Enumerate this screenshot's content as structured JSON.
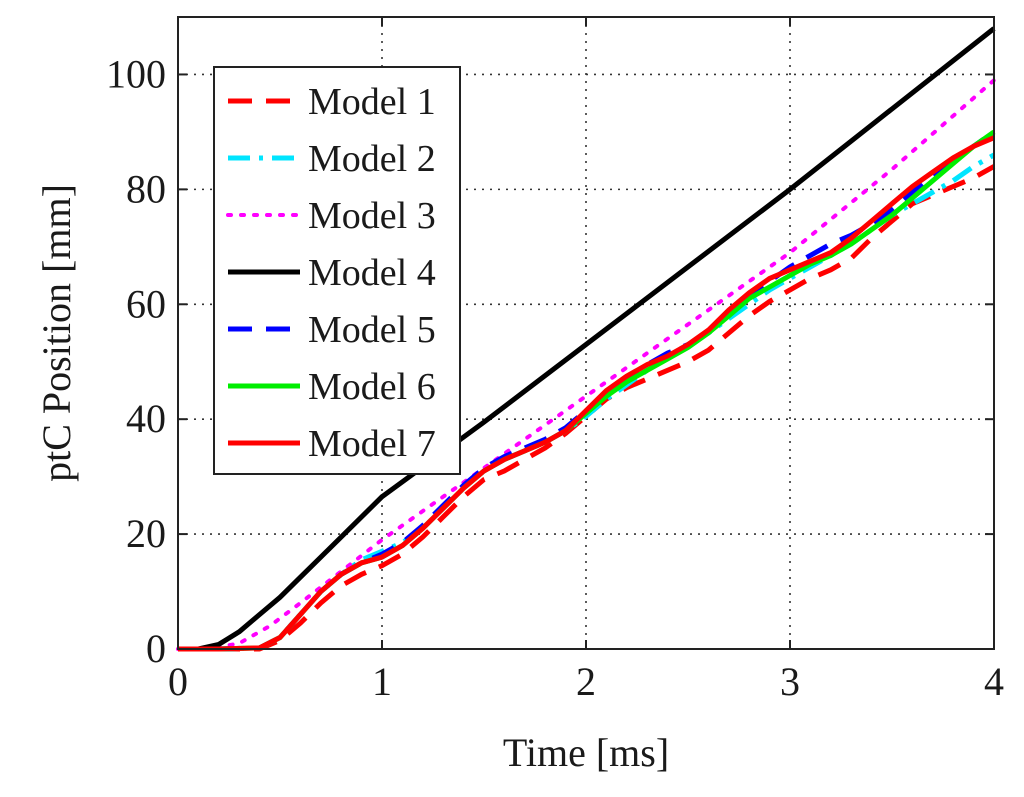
{
  "chart_data": {
    "type": "line",
    "title": "",
    "xlabel": "Time [ms]",
    "ylabel": "ptC Position [mm]",
    "xlim": [
      0,
      4
    ],
    "ylim": [
      0,
      110
    ],
    "xticks": [
      0,
      1,
      2,
      3,
      4
    ],
    "yticks": [
      0,
      20,
      40,
      60,
      80,
      100
    ],
    "grid": true,
    "legend_position": "top-left",
    "series": [
      {
        "name": "Model 1",
        "color": "#ff0000",
        "style": "dashed",
        "x": [
          0,
          0.2,
          0.4,
          0.5,
          0.6,
          0.7,
          0.8,
          0.9,
          1.0,
          1.1,
          1.2,
          1.3,
          1.4,
          1.5,
          1.6,
          1.7,
          1.8,
          1.9,
          2.0,
          2.1,
          2.2,
          2.3,
          2.4,
          2.5,
          2.6,
          2.7,
          2.8,
          2.9,
          3.0,
          3.1,
          3.2,
          3.3,
          3.4,
          3.5,
          3.6,
          3.7,
          3.8,
          3.9,
          4.0
        ],
        "y": [
          0,
          0,
          0,
          1.5,
          4.5,
          8,
          11,
          13,
          14.5,
          16.5,
          19.5,
          23,
          26.5,
          29.5,
          31,
          33,
          35,
          37.5,
          40.5,
          43.5,
          45.5,
          47,
          48.5,
          50,
          52,
          55,
          58,
          60.5,
          62.5,
          64.5,
          66,
          68,
          71.5,
          74.5,
          77.5,
          79,
          80.5,
          82,
          84
        ]
      },
      {
        "name": "Model 2",
        "color": "#00e5ff",
        "style": "dashdot",
        "x": [
          0,
          0.2,
          0.4,
          0.5,
          0.6,
          0.7,
          0.8,
          0.9,
          1.0,
          1.1,
          1.2,
          1.3,
          1.4,
          1.5,
          1.6,
          1.7,
          1.8,
          1.9,
          2.0,
          2.1,
          2.2,
          2.3,
          2.4,
          2.5,
          2.6,
          2.7,
          2.8,
          2.9,
          3.0,
          3.1,
          3.2,
          3.3,
          3.4,
          3.5,
          3.6,
          3.7,
          3.8,
          3.9,
          4.0
        ],
        "y": [
          0,
          0,
          0.2,
          2,
          6,
          10,
          13,
          15.5,
          17,
          18.5,
          21,
          24.5,
          28,
          31,
          33,
          34.5,
          36,
          38,
          40.5,
          43.5,
          46,
          48.5,
          51,
          53,
          55,
          57.5,
          60,
          62.5,
          64.5,
          66.5,
          68.5,
          70.5,
          73,
          75.5,
          77.5,
          79.5,
          81.5,
          84,
          86
        ]
      },
      {
        "name": "Model 3",
        "color": "#ff00ff",
        "style": "dotted",
        "x": [
          0,
          0.15,
          0.3,
          0.45,
          0.6,
          0.8,
          1.0,
          1.5,
          2.0,
          2.5,
          3.0,
          3.5,
          4.0
        ],
        "y": [
          0,
          0,
          1,
          4,
          8,
          13.5,
          19,
          31.5,
          44,
          56.5,
          69,
          83.5,
          99
        ]
      },
      {
        "name": "Model 4",
        "color": "#000000",
        "style": "solid",
        "x": [
          0,
          0.1,
          0.2,
          0.3,
          0.4,
          0.5,
          0.6,
          0.7,
          0.8,
          1.0,
          1.5,
          2.0,
          2.5,
          3.0,
          3.5,
          4.0
        ],
        "y": [
          0,
          0,
          0.8,
          3,
          6,
          9,
          12.5,
          16,
          19.5,
          26.5,
          39.5,
          53,
          66.5,
          80,
          94,
          108
        ]
      },
      {
        "name": "Model 5",
        "color": "#0000ff",
        "style": "dashed",
        "x": [
          0,
          0.2,
          0.4,
          0.5,
          0.6,
          0.7,
          0.8,
          0.9,
          1.0,
          1.1,
          1.2,
          1.3,
          1.4,
          1.5,
          1.6,
          1.7,
          1.8,
          1.9,
          2.0,
          2.1,
          2.2,
          2.3,
          2.4,
          2.5,
          2.6,
          2.7,
          2.8,
          2.9,
          3.0,
          3.1,
          3.2,
          3.3,
          3.4,
          3.5,
          3.6,
          3.7,
          3.8,
          3.9,
          4.0
        ],
        "y": [
          0,
          0,
          0.2,
          2,
          6,
          10,
          13,
          15,
          16.5,
          18.5,
          21.5,
          25,
          28.5,
          31.5,
          33.5,
          35,
          36.5,
          38.5,
          41.5,
          44.5,
          47,
          49.5,
          51.5,
          53,
          55,
          58.5,
          61.5,
          64,
          66.5,
          68.5,
          70.5,
          72,
          74,
          76.5,
          79.5,
          82.5,
          85,
          87.5,
          90
        ]
      },
      {
        "name": "Model 6",
        "color": "#00ee00",
        "style": "solid",
        "x": [
          0,
          0.2,
          0.4,
          0.5,
          0.6,
          0.7,
          0.8,
          0.9,
          1.0,
          1.1,
          1.2,
          1.3,
          1.4,
          1.5,
          1.6,
          1.7,
          1.8,
          1.9,
          2.0,
          2.1,
          2.2,
          2.3,
          2.4,
          2.5,
          2.6,
          2.7,
          2.8,
          2.9,
          3.0,
          3.1,
          3.2,
          3.3,
          3.4,
          3.5,
          3.6,
          3.7,
          3.8,
          3.9,
          4.0
        ],
        "y": [
          0,
          0,
          0.2,
          2,
          6,
          10,
          13,
          15,
          16,
          18,
          21,
          24.5,
          28,
          31,
          33,
          34.5,
          36,
          38,
          41,
          44,
          46.5,
          48.5,
          50.5,
          52.5,
          55,
          58,
          61,
          63,
          65,
          67,
          68.5,
          70.5,
          73,
          75.5,
          78.5,
          81.5,
          84.5,
          87.5,
          90
        ]
      },
      {
        "name": "Model 7",
        "color": "#ff0000",
        "style": "solid",
        "x": [
          0,
          0.2,
          0.4,
          0.5,
          0.6,
          0.7,
          0.8,
          0.9,
          1.0,
          1.1,
          1.2,
          1.3,
          1.4,
          1.5,
          1.6,
          1.7,
          1.8,
          1.9,
          2.0,
          2.1,
          2.2,
          2.3,
          2.4,
          2.5,
          2.6,
          2.7,
          2.8,
          2.9,
          3.0,
          3.1,
          3.2,
          3.3,
          3.4,
          3.5,
          3.6,
          3.7,
          3.8,
          3.9,
          4.0
        ],
        "y": [
          0,
          0,
          0.2,
          2,
          6,
          10,
          13,
          15,
          16,
          18,
          21,
          24.5,
          28,
          31,
          33,
          34.5,
          36,
          38,
          41.5,
          45,
          47.5,
          49.5,
          51,
          53,
          55.5,
          59,
          62,
          64.5,
          66,
          67.5,
          69,
          71.5,
          74.5,
          77.5,
          80.5,
          83,
          85.5,
          87.5,
          89
        ]
      }
    ]
  }
}
